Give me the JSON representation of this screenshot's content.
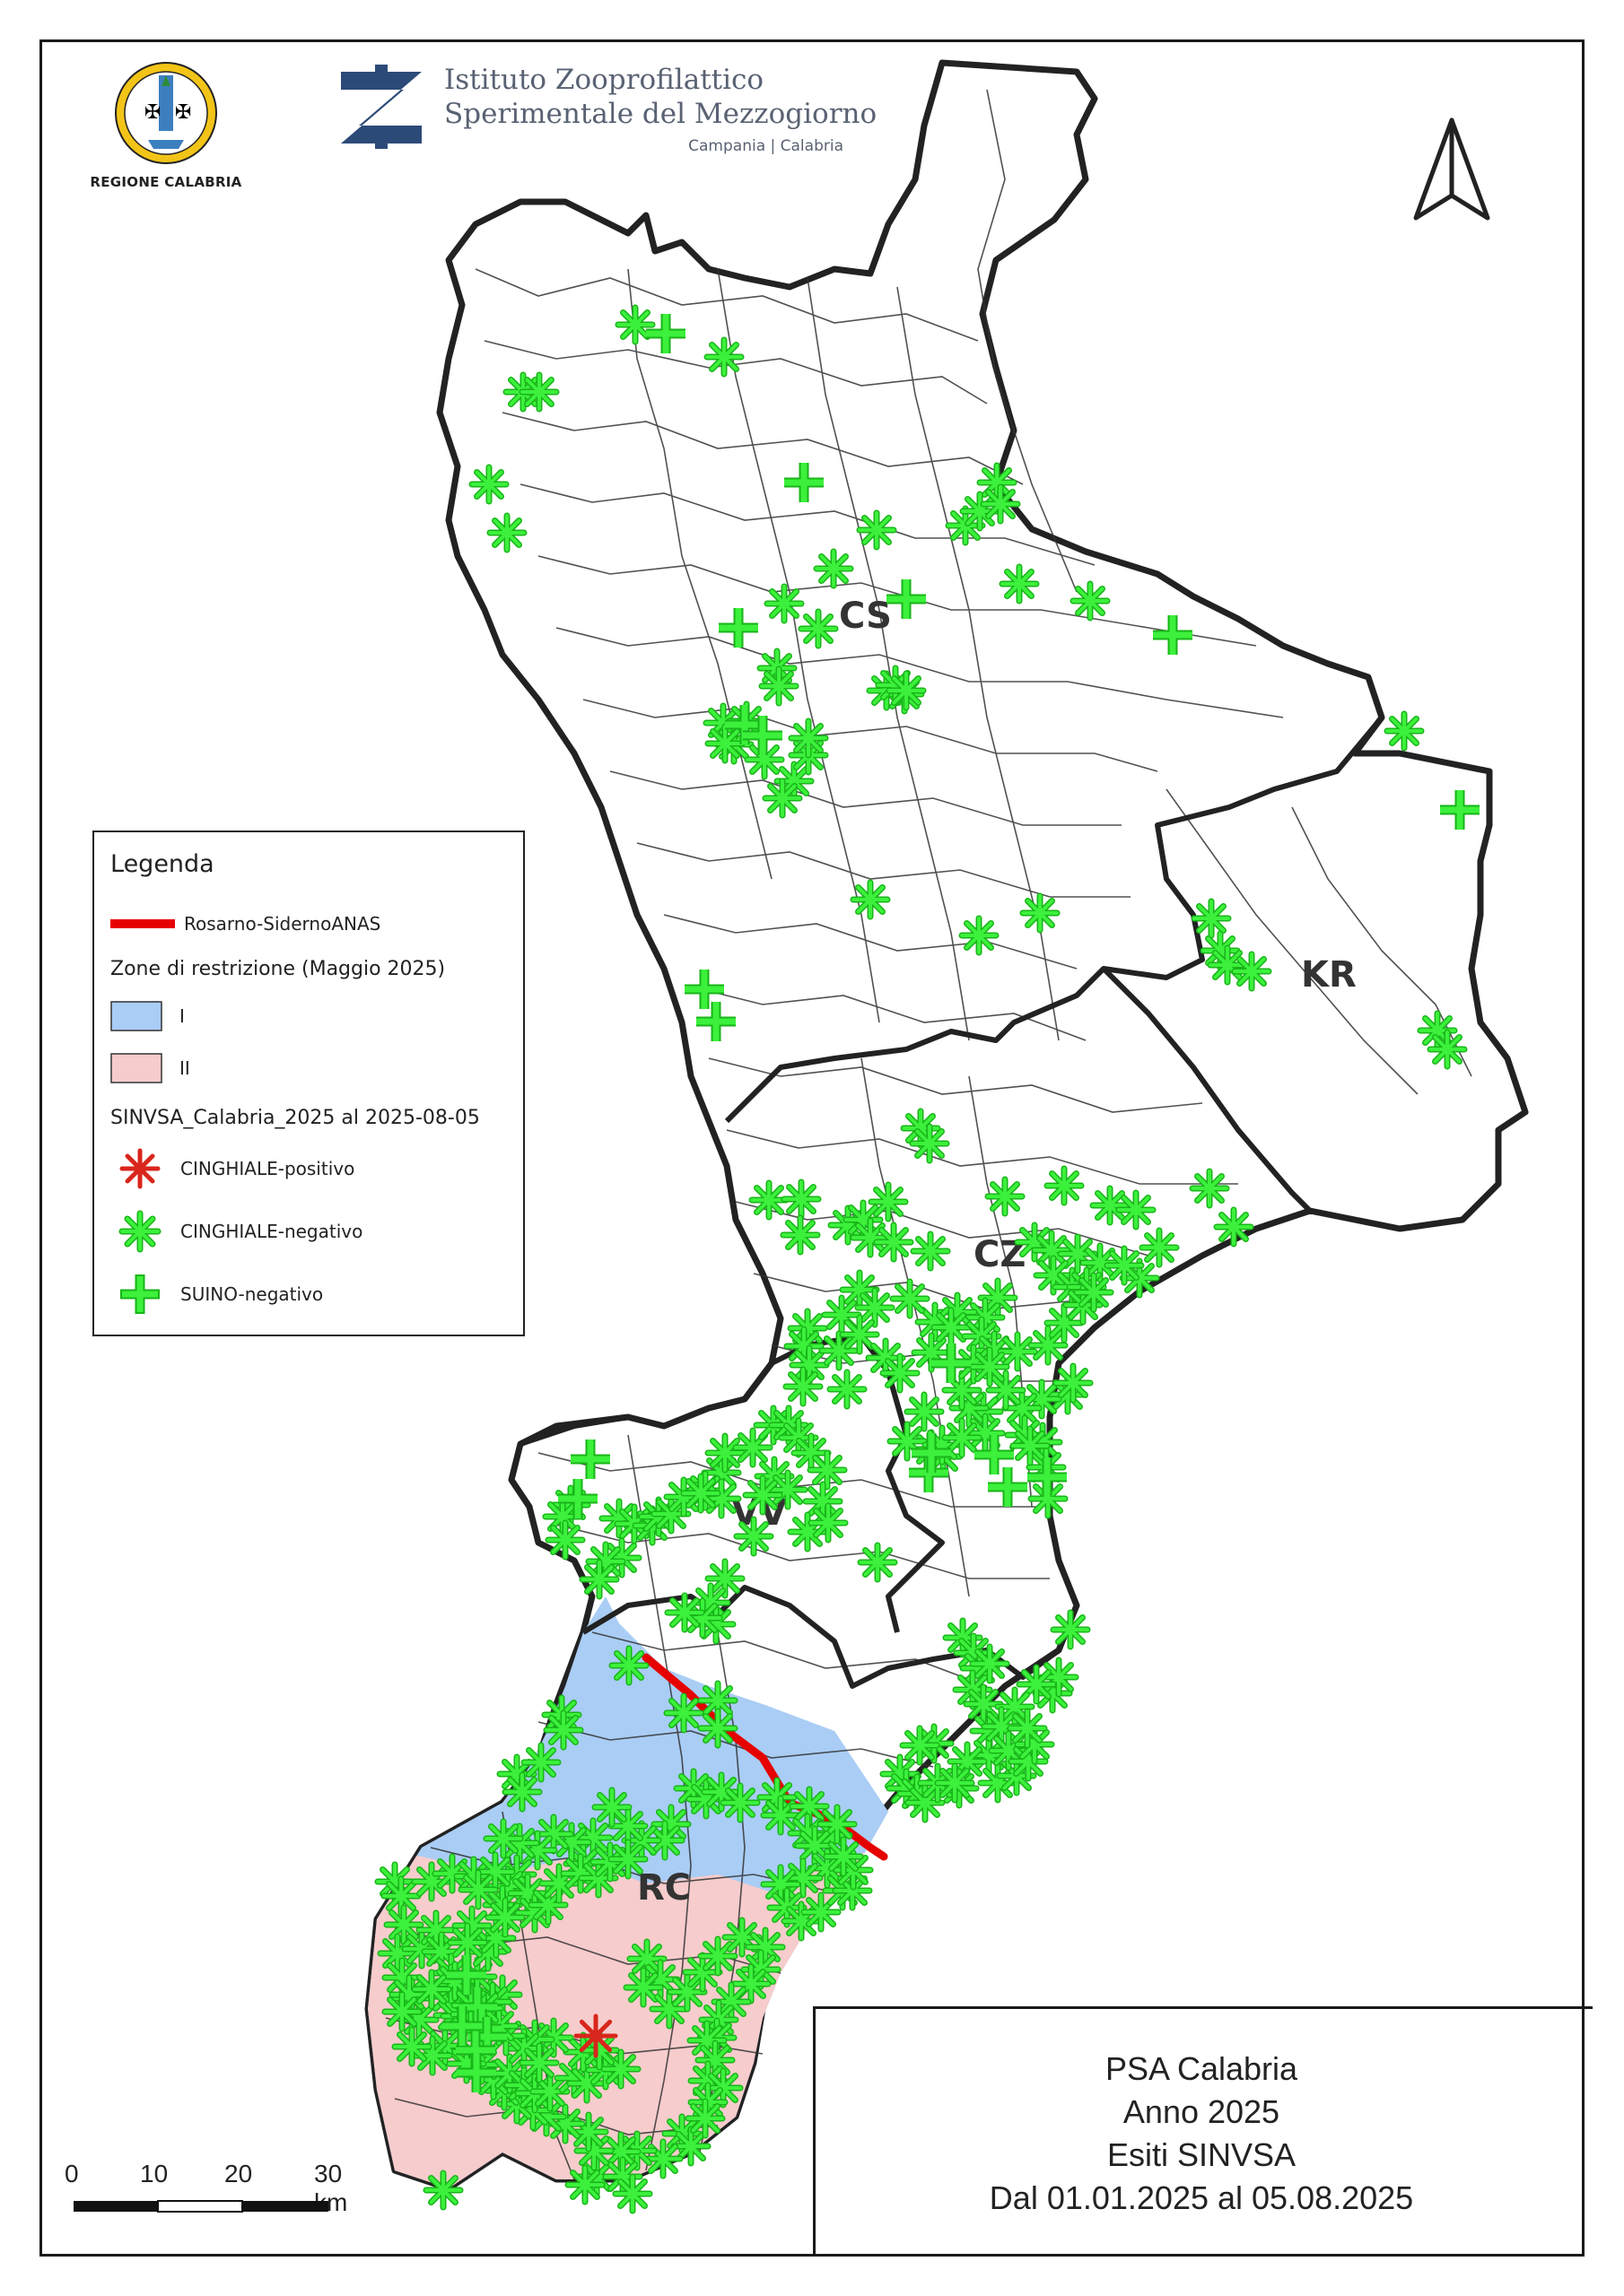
{
  "region_logo": {
    "caption": "REGIONE CALABRIA"
  },
  "institute": {
    "name_line1": "Istituto Zooprofilattico",
    "name_line2": "Sperimentale del Mezzogiorno",
    "subtitle": "Campania | Calabria"
  },
  "legend": {
    "title": "Legenda",
    "road_label": "Rosarno-SidernoANAS",
    "zones_header": "Zone di restrizione (Maggio 2025)",
    "zone_1": "I",
    "zone_2": "II",
    "dataset_header": "SINVSA_Calabria_2025 al 2025-08-05",
    "item_positive": "CINGHIALE-positivo",
    "item_negative": "CINGHIALE-negativo",
    "item_pig": "SUINO-negativo"
  },
  "colors": {
    "zone_1": "#a9cdf5",
    "zone_2": "#f6cccc",
    "road": "#e60000",
    "positive": "#d9261c",
    "negative": "#1ee61e",
    "boundary": "#222222"
  },
  "provinces": [
    "CS",
    "KR",
    "CZ",
    "VV",
    "RC"
  ],
  "title_box": {
    "line1": "PSA Calabria",
    "line2": "Anno 2025",
    "line3": "Esiti SINVSA",
    "line4": "Dal 01.01.2025 al 05.08.2025"
  },
  "scale_bar": {
    "ticks": [
      "0",
      "10",
      "20",
      "30 km"
    ]
  },
  "north_arrow": {
    "icon": "north-arrow-icon"
  }
}
